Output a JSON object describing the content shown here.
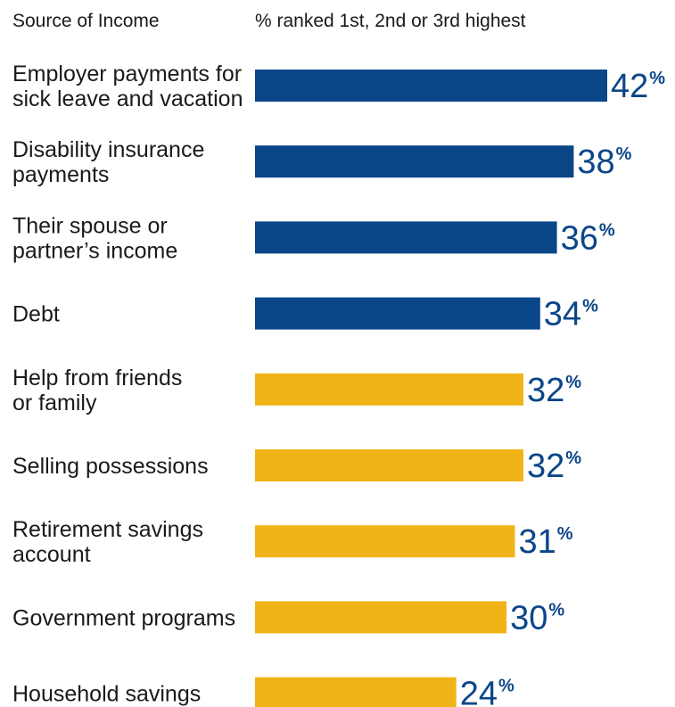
{
  "chart_data": {
    "type": "bar",
    "orientation": "horizontal",
    "column_headers": {
      "category": "Source of Income",
      "value": "% ranked 1st, 2nd or 3rd highest"
    },
    "categories": [
      [
        "Employer payments for",
        "sick leave and vacation"
      ],
      [
        "Disability insurance",
        "payments"
      ],
      [
        "Their spouse or",
        "partner’s income"
      ],
      [
        "Debt"
      ],
      [
        "Help from friends",
        "or family"
      ],
      [
        "Selling possessions"
      ],
      [
        "Retirement savings",
        "account"
      ],
      [
        "Government programs"
      ],
      [
        "Household savings"
      ]
    ],
    "values": [
      42,
      38,
      36,
      34,
      32,
      32,
      31,
      30,
      24
    ],
    "value_suffix": "%",
    "bar_colors": [
      "#0b4688",
      "#0b4688",
      "#0b4688",
      "#0b4688",
      "#f0b418",
      "#f0b418",
      "#f0b418",
      "#f0b418",
      "#f0b418"
    ],
    "label_color": "#0b4688",
    "xlim": [
      0,
      42
    ],
    "grid": false,
    "legend": "none"
  }
}
